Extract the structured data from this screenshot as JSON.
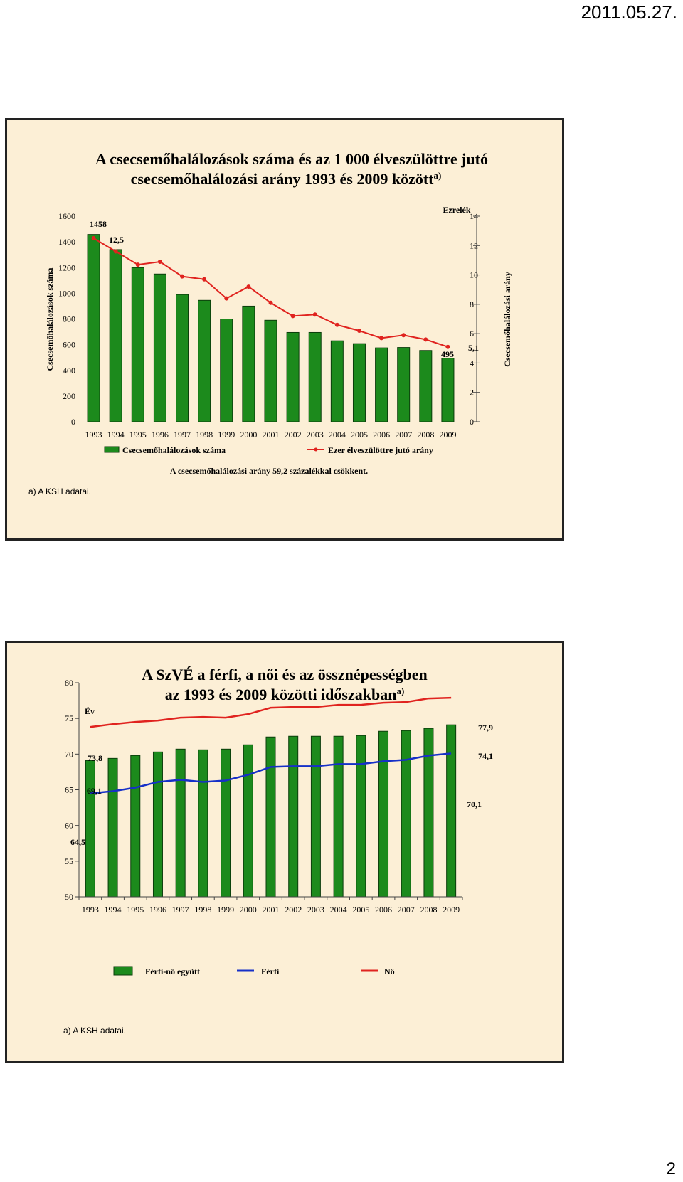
{
  "page": {
    "date": "2011.05.27.",
    "page_number": "2"
  },
  "colors": {
    "bar": "#1c8a1c",
    "bar_edge": "#0b3d0b",
    "red_line": "#e0231f",
    "blue_line": "#1630c8",
    "slide_bg": "#fcefd6"
  },
  "chart_data": [
    {
      "type": "bar+line",
      "title_line1": "A csecsemőhalálozások száma és az 1 000 élveszülöttre jutó",
      "title_line2": "csecsemőhalálozási arány 1993 és 2009 között",
      "title_sup": "a)",
      "categories": [
        "1993",
        "1994",
        "1995",
        "1996",
        "1997",
        "1998",
        "1999",
        "2000",
        "2001",
        "2002",
        "2003",
        "2004",
        "2005",
        "2006",
        "2007",
        "2008",
        "2009"
      ],
      "bar_series": {
        "name": "Csecsemőhalálozások száma",
        "values": [
          1458,
          1340,
          1200,
          1150,
          990,
          945,
          800,
          900,
          790,
          695,
          695,
          630,
          608,
          575,
          578,
          555,
          495
        ]
      },
      "line_series": {
        "name": "Ezer élveszülöttre jutó arány",
        "values": [
          12.5,
          11.6,
          10.7,
          10.9,
          9.9,
          9.7,
          8.4,
          9.2,
          8.1,
          7.2,
          7.3,
          6.6,
          6.2,
          5.7,
          5.9,
          5.6,
          5.1
        ]
      },
      "y_left": {
        "label": "Csecsemőhalálozások száma",
        "min": 0,
        "max": 1600,
        "ticks": [
          "0",
          "200",
          "400",
          "600",
          "800",
          "1000",
          "1200",
          "1400",
          "1600"
        ]
      },
      "y_right": {
        "label": "Csecsemőhalálozási arány",
        "unit": "Ezrelék",
        "min": 0,
        "max": 14,
        "ticks": [
          "0",
          "2",
          "4",
          "6",
          "8",
          "10",
          "12",
          "14"
        ]
      },
      "data_labels": {
        "bar_first": "1458",
        "line_first": "12,5",
        "bar_last": "495",
        "line_last": "5,1"
      },
      "note": "A csecsemőhalálozási arány 59,2 százalékkal csökkent.",
      "footnote": "a) A KSH adatai."
    },
    {
      "type": "bar+line",
      "title_line1": "A SzVÉ a férfi, a női és az össznépességben",
      "title_line2": "az 1993 és 2009 közötti időszakban",
      "title_sup": "a)",
      "categories": [
        "1993",
        "1994",
        "1995",
        "1996",
        "1997",
        "1998",
        "1999",
        "2000",
        "2001",
        "2002",
        "2003",
        "2004",
        "2005",
        "2006",
        "2007",
        "2008",
        "2009"
      ],
      "y": {
        "unit": "Év",
        "min": 50,
        "max": 80,
        "ticks": [
          "50",
          "55",
          "60",
          "65",
          "70",
          "75",
          "80"
        ]
      },
      "bar_series": {
        "name": "Férfi-nő együtt",
        "values": [
          69.1,
          69.4,
          69.8,
          70.3,
          70.7,
          70.6,
          70.7,
          71.3,
          72.4,
          72.5,
          72.5,
          72.5,
          72.6,
          73.2,
          73.3,
          73.6,
          74.1
        ]
      },
      "line_series": [
        {
          "name": "Férfi",
          "color": "blue",
          "values": [
            64.5,
            64.8,
            65.3,
            66.1,
            66.4,
            66.1,
            66.3,
            67.1,
            68.2,
            68.3,
            68.3,
            68.6,
            68.6,
            69.0,
            69.2,
            69.8,
            70.1
          ]
        },
        {
          "name": "Nő",
          "color": "red",
          "values": [
            73.8,
            74.2,
            74.5,
            74.7,
            75.1,
            75.2,
            75.1,
            75.6,
            76.5,
            76.6,
            76.6,
            76.9,
            76.9,
            77.2,
            77.3,
            77.8,
            77.9
          ]
        }
      ],
      "data_labels": {
        "female_last": "77,9",
        "female_first": "73,8",
        "total_last": "74,1",
        "total_first": "69,1",
        "male_last": "70,1",
        "male_first": "64,5"
      },
      "footnote": "a) A KSH adatai."
    }
  ]
}
